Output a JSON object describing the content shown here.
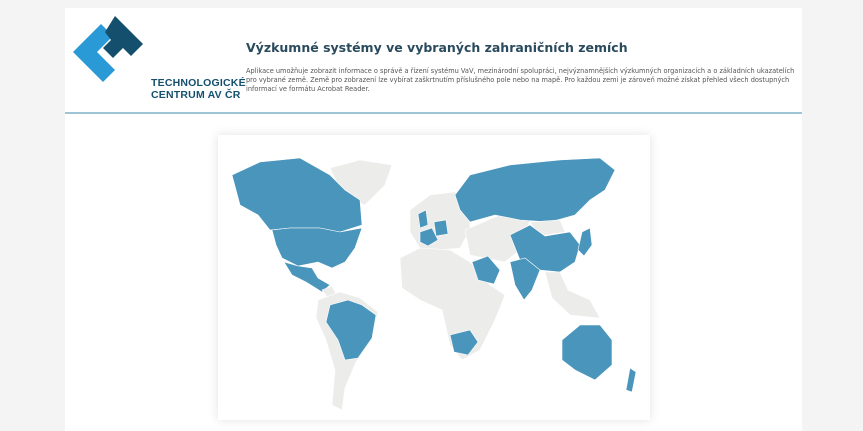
{
  "logo": {
    "line1": "TECHNOLOGICKÉ",
    "line2": "CENTRUM AV ČR"
  },
  "header": {
    "title": "Výzkumné systémy ve vybraných zahraničních zemích",
    "description": "Aplikace umožňuje zobrazit informace o správě a řízení systému VaV, mezinárodní spolupráci, nejvýznamnějších výzkumných organizacích a o základních ukazatelích pro vybrané země. Země pro zobrazení lze vybírat zaškrtnutím příslušného pole nebo na mapě. Pro každou zemi je zároveň možné získat přehled všech dostupných informací ve formátu Acrobat Reader."
  },
  "map": {
    "highlight_color": "#4a95bb",
    "base_color": "#ececea",
    "highlighted_countries": [
      "Canada",
      "United States",
      "Mexico",
      "Brazil",
      "United Kingdom",
      "France",
      "Germany",
      "South Africa",
      "Saudi Arabia",
      "Israel",
      "Russia",
      "China",
      "India",
      "Japan",
      "South Korea",
      "Australia",
      "New Zealand",
      "Singapore"
    ]
  }
}
